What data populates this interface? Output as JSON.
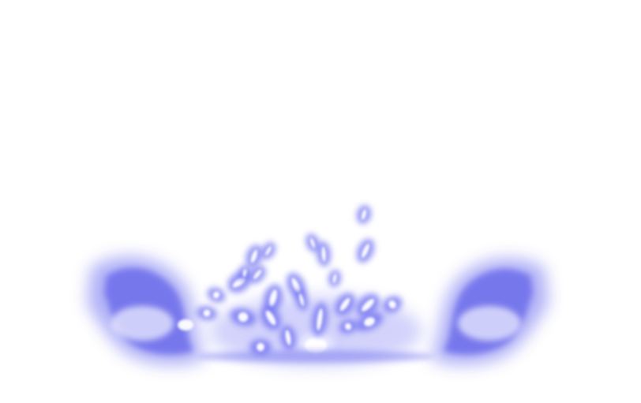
{
  "image": {
    "subject": "energy-burst",
    "background_color": "#ffffff",
    "glow_color": "#6b6bf2",
    "halo_color": "#a8a8ff",
    "core_color": "#f4f4ff"
  }
}
